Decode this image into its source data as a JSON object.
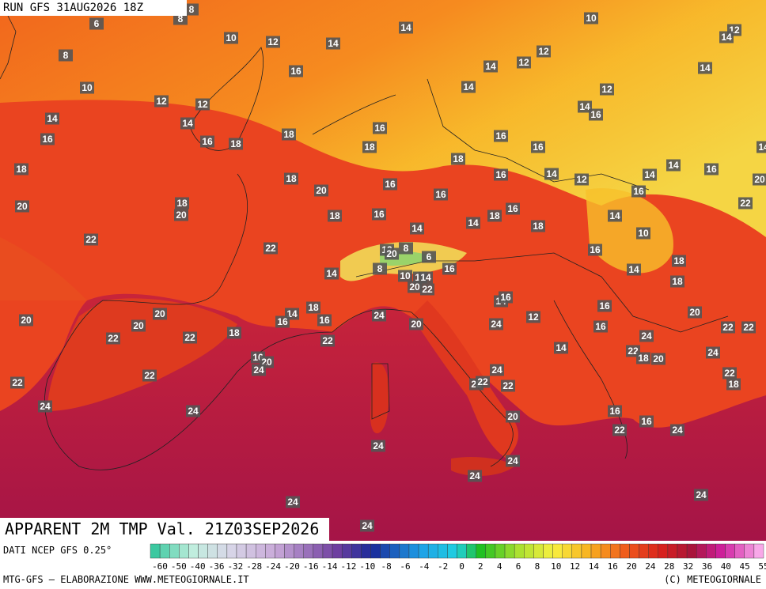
{
  "header": {
    "run": "RUN GFS 31AUG2026 18Z"
  },
  "map": {
    "labels": [
      6,
      8,
      10,
      8,
      8,
      10,
      12,
      14,
      14,
      16,
      12,
      12,
      14,
      16,
      14,
      16,
      18,
      18,
      16,
      18,
      18,
      18,
      20,
      16,
      20,
      18,
      20,
      18,
      16,
      22,
      22,
      14,
      14,
      12,
      20,
      8,
      6,
      8,
      10,
      17,
      14,
      16,
      20,
      22,
      18,
      14,
      16,
      16,
      18,
      20,
      20,
      20,
      22,
      22,
      22,
      24,
      20,
      16,
      20,
      24,
      22,
      22,
      24,
      24,
      24,
      22,
      22,
      24,
      22,
      20,
      24,
      24,
      24,
      24,
      10,
      12,
      14,
      12,
      12,
      14,
      14,
      12,
      14,
      14,
      16,
      16,
      16,
      18,
      16,
      14,
      12,
      14,
      14,
      16,
      20,
      16,
      16,
      22,
      14,
      18,
      16,
      18,
      14,
      10,
      16,
      18,
      14,
      18,
      14,
      16,
      12,
      16,
      24,
      16,
      20,
      22,
      22,
      14,
      22,
      18,
      20,
      24,
      22,
      18,
      16,
      16,
      22,
      24,
      24,
      24,
      14
    ]
  },
  "footer": {
    "title": "APPARENT 2M TMP Val. 21Z03SEP2026",
    "source": "DATI NCEP GFS 0.25°",
    "credit_left": "MTG-GFS — ELABORAZIONE WWW.METEOGIORNALE.IT",
    "credit_right": "(C) METEOGIORNALE"
  },
  "legend": {
    "ticks": [
      -60,
      -50,
      -40,
      -36,
      -32,
      -28,
      -24,
      -20,
      -16,
      -14,
      -12,
      -10,
      -8,
      -6,
      -4,
      -2,
      0,
      2,
      4,
      6,
      8,
      10,
      12,
      14,
      16,
      20,
      24,
      28,
      32,
      36,
      40,
      45,
      55
    ]
  }
}
